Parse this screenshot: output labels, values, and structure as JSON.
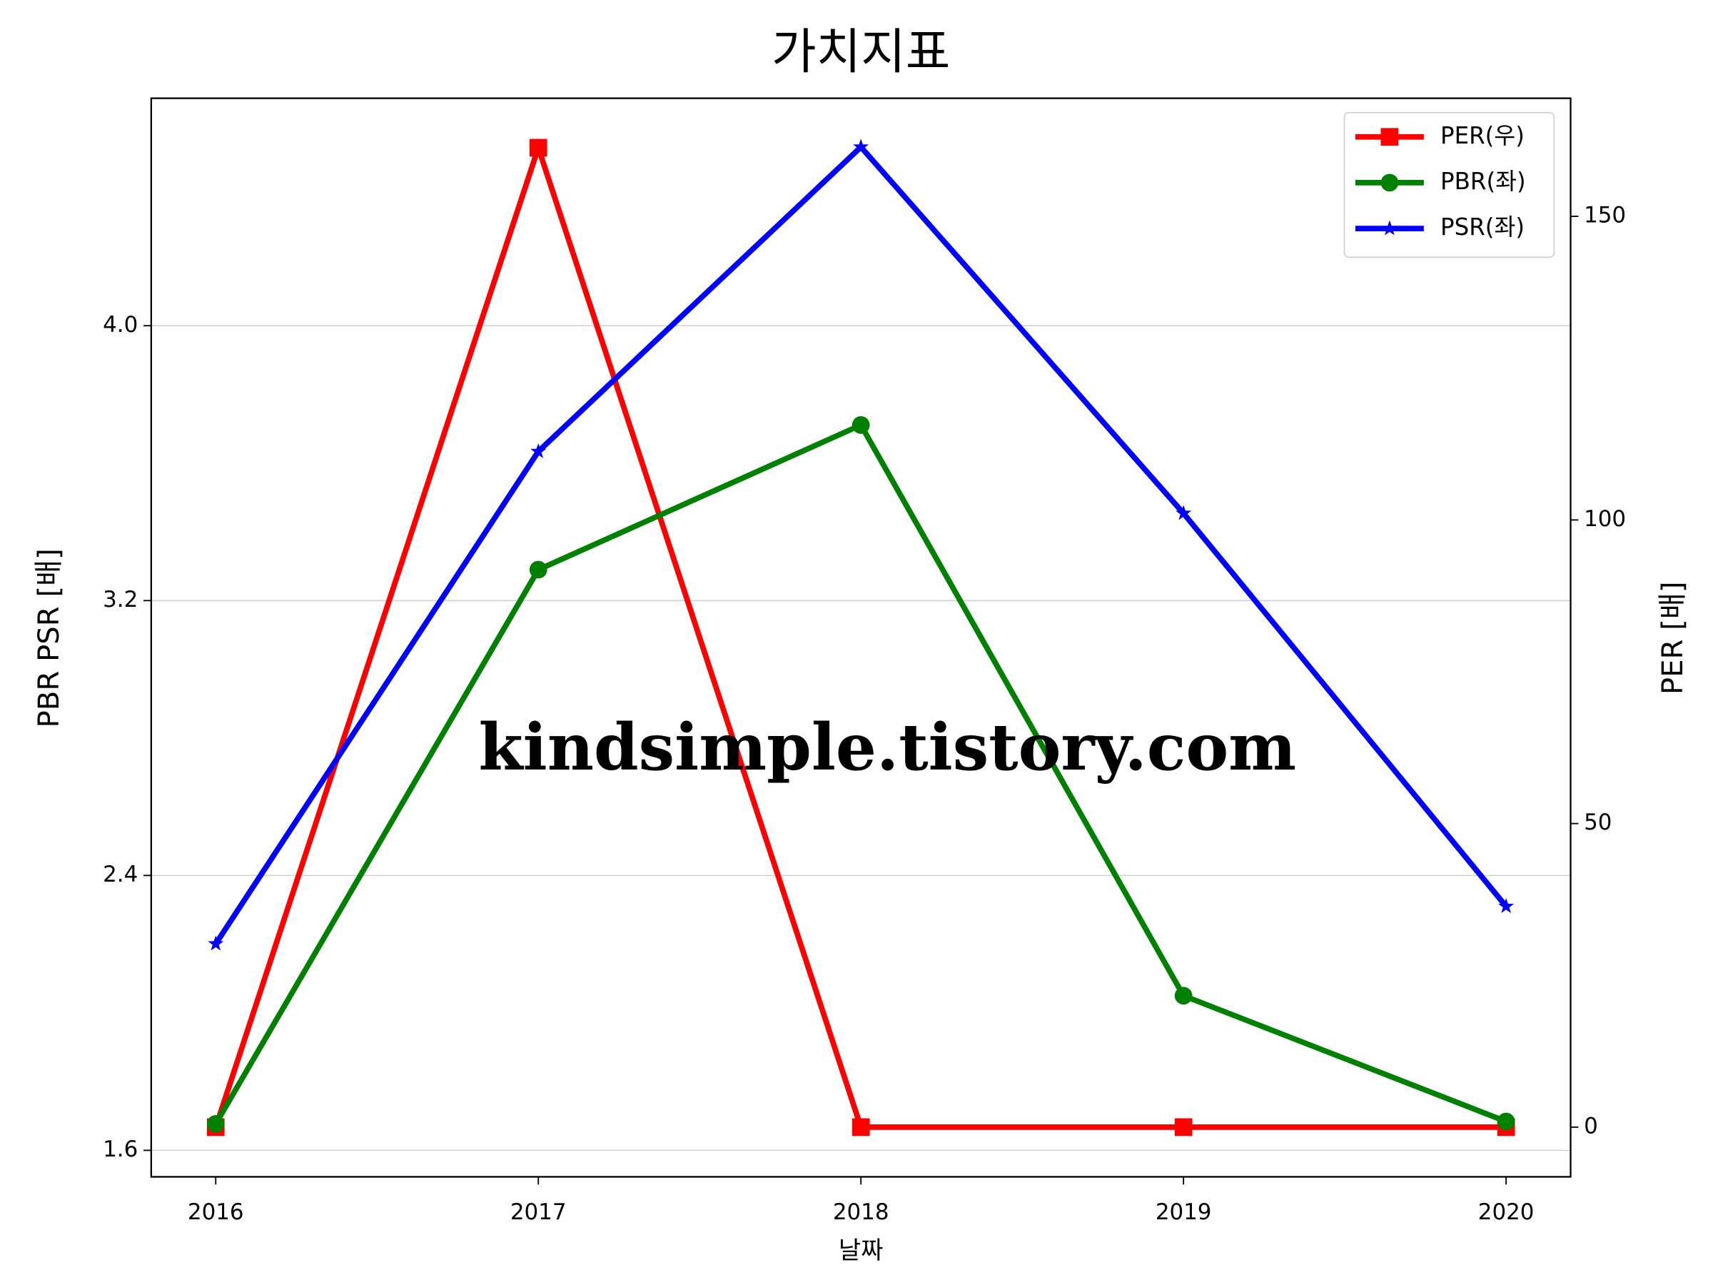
{
  "chart_data": {
    "type": "line",
    "title": "가치지표",
    "xlabel": "날짜",
    "ylabel": "PBR PSR [배]",
    "y2label": "PER [배]",
    "ylabel_color": "#008000",
    "y2label_color": "#ff0000",
    "watermark": "kindsimple.tistory.com",
    "x": [
      2016,
      2017,
      2018,
      2019,
      2020
    ],
    "xlim": [
      2015.8,
      2020.2
    ],
    "xticks": [
      2016,
      2017,
      2018,
      2019,
      2020
    ],
    "ylim": [
      1.523,
      4.662
    ],
    "yticks": [
      1.6,
      2.4,
      3.2,
      {
        "value": 4,
        "label": "4.0"
      }
    ],
    "y2lim": [
      -8.18,
      169.45
    ],
    "y2ticks": [
      0,
      50,
      100,
      150
    ],
    "grid": true,
    "legend": "upper right",
    "series": [
      {
        "name": "PER(우)",
        "color": "#ff0000",
        "marker": "square",
        "axis": "y2",
        "values": [
          0,
          161.3,
          0,
          0,
          0
        ]
      },
      {
        "name": "PBR(좌)",
        "color": "#008000",
        "marker": "circle",
        "values": [
          1.677,
          3.29,
          3.711,
          2.05,
          1.684
        ]
      },
      {
        "name": "PSR(좌)",
        "color": "#0000ff",
        "marker": "star",
        "values": [
          2.201,
          3.634,
          4.52,
          3.454,
          2.31
        ]
      }
    ]
  }
}
